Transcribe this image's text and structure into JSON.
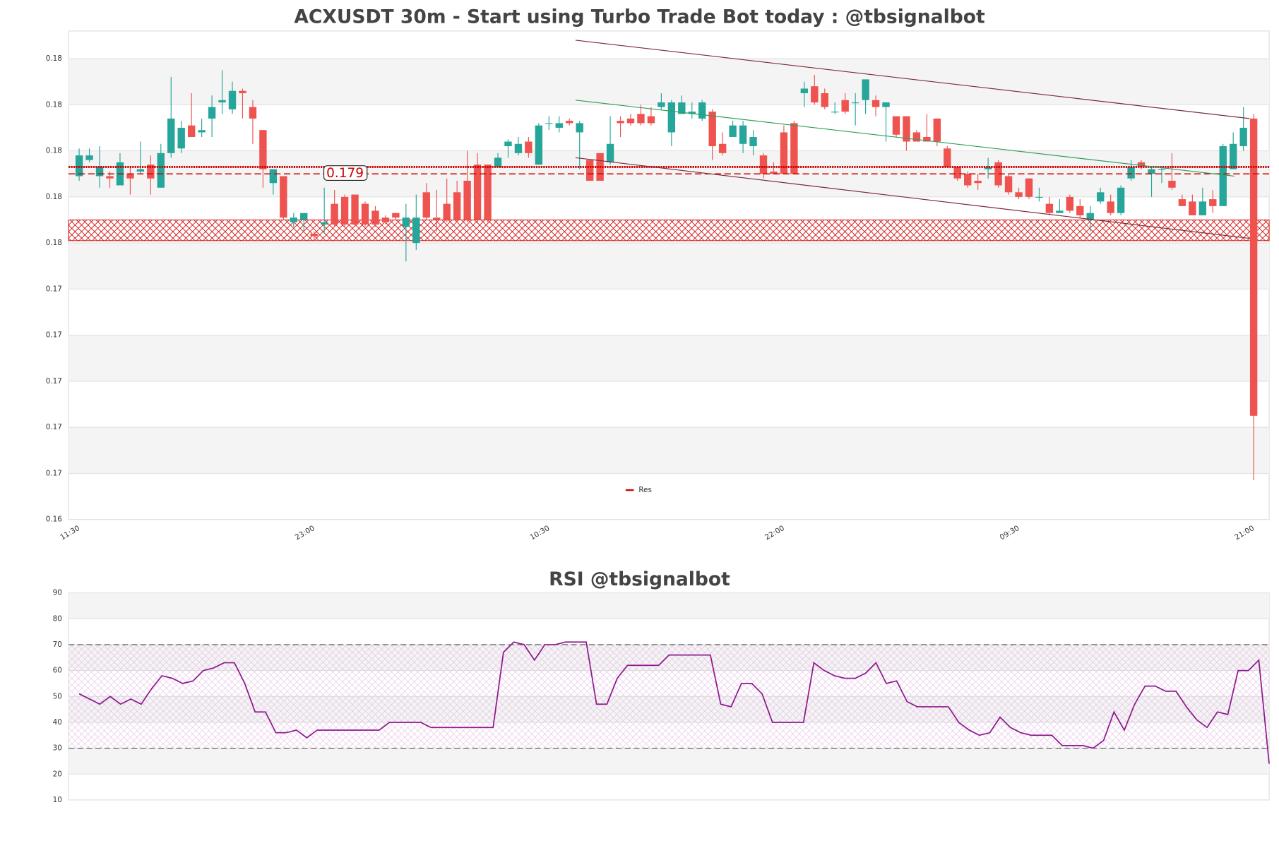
{
  "chart_data": [
    {
      "type": "candlestick",
      "title": "ACXUSDT 30m - Start using Turbo Trade Bot today : @tbsignalbot",
      "categories": [
        "11:30",
        null,
        null,
        null,
        null,
        null,
        null,
        null,
        null,
        null,
        null,
        null,
        null,
        null,
        null,
        null,
        null,
        null,
        null,
        null,
        null,
        null,
        null,
        "23:00",
        null,
        null,
        null,
        null,
        null,
        null,
        null,
        null,
        null,
        null,
        null,
        null,
        null,
        null,
        null,
        null,
        null,
        null,
        null,
        null,
        null,
        null,
        "10:30",
        null,
        null,
        null,
        null,
        null,
        null,
        null,
        null,
        null,
        null,
        null,
        null,
        null,
        null,
        null,
        null,
        null,
        null,
        null,
        null,
        null,
        null,
        "22:00",
        null,
        null,
        null,
        null,
        null,
        null,
        null,
        null,
        null,
        null,
        null,
        null,
        null,
        null,
        null,
        null,
        null,
        null,
        null,
        null,
        null,
        null,
        "09:30",
        null,
        null,
        null,
        null,
        null,
        null,
        null,
        null,
        null,
        null,
        null,
        null,
        null,
        null,
        null,
        null,
        null,
        null,
        null,
        null,
        null,
        null,
        "21:00"
      ],
      "open": [
        0.1789,
        0.1796,
        0.1789,
        0.1789,
        0.1785,
        0.179,
        0.1791,
        0.1794,
        0.1784,
        0.1799,
        0.1801,
        0.1811,
        0.1808,
        0.1814,
        0.1821,
        0.1818,
        0.1826,
        0.1819,
        0.1809,
        0.1786,
        0.1789,
        0.1769,
        0.177,
        0.1764,
        0.1768,
        0.1777,
        0.178,
        0.1781,
        0.1777,
        0.1774,
        0.1771,
        0.1773,
        0.1767,
        0.176,
        0.1782,
        0.1771,
        0.1777,
        0.1782,
        0.1787,
        0.1794,
        0.1794,
        0.1793,
        0.1802,
        0.1799,
        0.1804,
        0.1794,
        0.1812,
        0.181,
        0.1813,
        0.1808,
        0.1796,
        0.1799,
        0.1795,
        0.1813,
        0.1814,
        0.1816,
        0.1815,
        0.1819,
        0.1808,
        0.1816,
        0.1816,
        0.1814,
        0.1817,
        0.1803,
        0.1806,
        0.1803,
        0.1802,
        0.1798,
        0.1791,
        0.1808,
        0.1812,
        0.1825,
        0.1828,
        0.1825,
        0.1817,
        0.1822,
        0.1821,
        0.1822,
        0.1822,
        0.1819,
        0.1815,
        0.1815,
        0.1808,
        0.1806,
        0.1814,
        0.1801,
        0.1793,
        0.179,
        0.1787,
        0.1792,
        0.1795,
        0.1789,
        0.1782,
        0.1788,
        0.178,
        0.1777,
        0.1773,
        0.178,
        0.1776,
        0.177,
        0.1778,
        0.1778,
        0.1773,
        0.1788,
        0.1795,
        0.179,
        0.1792,
        0.1787,
        0.1779,
        0.1778,
        0.1772,
        0.1779,
        0.1776,
        0.1792,
        0.1802,
        0.1814
      ],
      "high": [
        0.1801,
        0.1801,
        0.1802,
        0.1791,
        0.1799,
        0.1793,
        0.1804,
        0.1798,
        0.1803,
        0.1832,
        0.1813,
        0.1825,
        0.1814,
        0.1824,
        0.1835,
        0.183,
        0.1827,
        0.1822,
        0.1809,
        0.1792,
        0.1789,
        0.1773,
        0.1773,
        0.1765,
        0.1784,
        0.1783,
        0.1781,
        0.1781,
        0.1778,
        0.1776,
        0.1772,
        0.1773,
        0.1777,
        0.1781,
        0.1786,
        0.1783,
        0.1788,
        0.1787,
        0.18,
        0.1799,
        0.1794,
        0.1799,
        0.1805,
        0.1806,
        0.1806,
        0.1812,
        0.1815,
        0.1815,
        0.1814,
        0.1813,
        0.1796,
        0.1799,
        0.1815,
        0.1815,
        0.1816,
        0.182,
        0.1819,
        0.1825,
        0.1822,
        0.1824,
        0.1821,
        0.1822,
        0.1818,
        0.1808,
        0.1813,
        0.1813,
        0.1809,
        0.1799,
        0.1795,
        0.1811,
        0.1813,
        0.183,
        0.1833,
        0.1827,
        0.1821,
        0.1825,
        0.1825,
        0.1831,
        0.1824,
        0.1821,
        0.1815,
        0.1815,
        0.1809,
        0.1816,
        0.1814,
        0.1802,
        0.1793,
        0.1791,
        0.179,
        0.1797,
        0.1796,
        0.179,
        0.1784,
        0.1788,
        0.1784,
        0.178,
        0.1779,
        0.1781,
        0.1779,
        0.1776,
        0.1784,
        0.1781,
        0.1785,
        0.1796,
        0.1796,
        0.1793,
        0.1793,
        0.1799,
        0.1781,
        0.1781,
        0.1784,
        0.1783,
        0.1803,
        0.1808,
        0.1819,
        0.1816
      ],
      "low": [
        0.1787,
        0.1795,
        0.1784,
        0.1784,
        0.1785,
        0.1781,
        0.179,
        0.1781,
        0.1784,
        0.1797,
        0.1799,
        0.1806,
        0.1806,
        0.1806,
        0.1816,
        0.1816,
        0.1814,
        0.1803,
        0.1784,
        0.1781,
        0.177,
        0.1767,
        0.1765,
        0.1761,
        0.1764,
        0.1767,
        0.1767,
        0.1767,
        0.1767,
        0.1767,
        0.1768,
        0.177,
        0.1752,
        0.1757,
        0.177,
        0.1765,
        0.1769,
        0.1769,
        0.1769,
        0.1769,
        0.1769,
        0.1793,
        0.1797,
        0.1798,
        0.1797,
        0.1794,
        0.1809,
        0.1808,
        0.1811,
        0.1792,
        0.1787,
        0.1787,
        0.1794,
        0.1806,
        0.1811,
        0.1811,
        0.1811,
        0.1818,
        0.1802,
        0.1816,
        0.1814,
        0.1813,
        0.1796,
        0.1798,
        0.1806,
        0.1799,
        0.1798,
        0.1788,
        0.179,
        0.179,
        0.179,
        0.1819,
        0.182,
        0.1818,
        0.1816,
        0.1816,
        0.1811,
        0.1816,
        0.1815,
        0.1804,
        0.1806,
        0.18,
        0.1804,
        0.1804,
        0.1802,
        0.1793,
        0.1787,
        0.1784,
        0.1783,
        0.1788,
        0.1784,
        0.1781,
        0.1779,
        0.1779,
        0.1778,
        0.1772,
        0.1773,
        0.1773,
        0.1771,
        0.1765,
        0.1777,
        0.1772,
        0.1772,
        0.1787,
        0.1792,
        0.178,
        0.1786,
        0.1783,
        0.1776,
        0.1772,
        0.1772,
        0.1773,
        0.1776,
        0.1792,
        0.18,
        0.1657
      ],
      "close": [
        0.1798,
        0.1798,
        0.1793,
        0.1788,
        0.1795,
        0.1788,
        0.1792,
        0.1788,
        0.1799,
        0.1814,
        0.181,
        0.1806,
        0.1809,
        0.1819,
        0.1822,
        0.1826,
        0.1825,
        0.1814,
        0.1792,
        0.1792,
        0.1771,
        0.1771,
        0.1773,
        0.1763,
        0.1769,
        0.1768,
        0.1768,
        0.1768,
        0.1768,
        0.1768,
        0.1769,
        0.1771,
        0.1771,
        0.1771,
        0.1771,
        0.177,
        0.177,
        0.177,
        0.177,
        0.177,
        0.177,
        0.1797,
        0.1804,
        0.1803,
        0.1799,
        0.1811,
        0.1812,
        0.1812,
        0.1812,
        0.1812,
        0.1787,
        0.1787,
        0.1803,
        0.1812,
        0.1812,
        0.1812,
        0.1812,
        0.1821,
        0.1821,
        0.1821,
        0.1817,
        0.1821,
        0.1802,
        0.1799,
        0.1811,
        0.1811,
        0.1806,
        0.179,
        0.179,
        0.179,
        0.179,
        0.1827,
        0.1821,
        0.1819,
        0.1817,
        0.1817,
        0.1821,
        0.1831,
        0.1819,
        0.1821,
        0.1807,
        0.1804,
        0.1804,
        0.1804,
        0.1804,
        0.1793,
        0.1788,
        0.1785,
        0.1786,
        0.1793,
        0.1785,
        0.1782,
        0.178,
        0.178,
        0.178,
        0.1773,
        0.1774,
        0.1774,
        0.1772,
        0.1773,
        0.1782,
        0.1773,
        0.1784,
        0.1793,
        0.1793,
        0.1792,
        0.1792,
        0.1784,
        0.1776,
        0.1772,
        0.1778,
        0.1776,
        0.1802,
        0.1803,
        0.181,
        0.1685
      ],
      "up_color": "#26a69a",
      "down_color": "#ef5350",
      "ylim": [
        0.164,
        0.1852
      ],
      "yticks": [
        {
          "value": 0.164,
          "label": "0.16"
        },
        {
          "value": 0.166,
          "label": "0.17"
        },
        {
          "value": 0.168,
          "label": "0.17"
        },
        {
          "value": 0.17,
          "label": "0.17"
        },
        {
          "value": 0.172,
          "label": "0.17"
        },
        {
          "value": 0.174,
          "label": "0.17"
        },
        {
          "value": 0.176,
          "label": "0.18"
        },
        {
          "value": 0.178,
          "label": "0.18"
        },
        {
          "value": 0.18,
          "label": "0.18"
        },
        {
          "value": 0.182,
          "label": "0.18"
        },
        {
          "value": 0.184,
          "label": "0.18"
        }
      ],
      "grid": true,
      "levels": [
        {
          "name": "Res",
          "value": 0.1793,
          "color": "#cc0000",
          "style": "dotted"
        },
        {
          "value": 0.179,
          "label": "0.179",
          "color": "#cc0000",
          "style": "dashed"
        }
      ],
      "zones": [
        {
          "from": 0.1761,
          "to": 0.177,
          "color": "#cc0000"
        }
      ],
      "trend_lines": [
        {
          "x": [
            48.6,
            114.6
          ],
          "y": [
            0.1848,
            0.1814
          ],
          "color": "#7a2a3a"
        },
        {
          "x": [
            48.6,
            114.6
          ],
          "y": [
            0.1797,
            0.1762
          ],
          "color": "#7a2a3a"
        },
        {
          "x": [
            48.6,
            113.1
          ],
          "y": [
            0.1822,
            0.1789
          ],
          "color": "#2e9e5b"
        }
      ],
      "legend_position": "lower center"
    },
    {
      "type": "line",
      "title": "RSI @tbsignalbot",
      "values": [
        51,
        49,
        47,
        50,
        47,
        49,
        47,
        53,
        58,
        57,
        55,
        56,
        60,
        61,
        63,
        63,
        55,
        44,
        44,
        36,
        36,
        37,
        34,
        37,
        37,
        37,
        37,
        37,
        37,
        37,
        40,
        40,
        40,
        40,
        38,
        38,
        38,
        38,
        38,
        38,
        38,
        67,
        71,
        70,
        64,
        70,
        70,
        71,
        71,
        71,
        47,
        47,
        57,
        62,
        62,
        62,
        62,
        66,
        66,
        66,
        66,
        66,
        47,
        46,
        55,
        55,
        51,
        40,
        40,
        40,
        40,
        63,
        60,
        58,
        57,
        57,
        59,
        63,
        55,
        56,
        48,
        46,
        46,
        46,
        46,
        40,
        37,
        35,
        36,
        42,
        38,
        36,
        35,
        35,
        35,
        31,
        31,
        31,
        30,
        33,
        44,
        37,
        47,
        54,
        54,
        52,
        52,
        46,
        41,
        38,
        44,
        43,
        60,
        60,
        64,
        24
      ],
      "color": "#8e1a8e",
      "ylim": [
        10,
        90
      ],
      "yticks": [
        10,
        20,
        30,
        40,
        50,
        60,
        70,
        80,
        90
      ],
      "hlines": [
        70,
        30
      ],
      "band": [
        30,
        70
      ],
      "grid": true
    }
  ]
}
